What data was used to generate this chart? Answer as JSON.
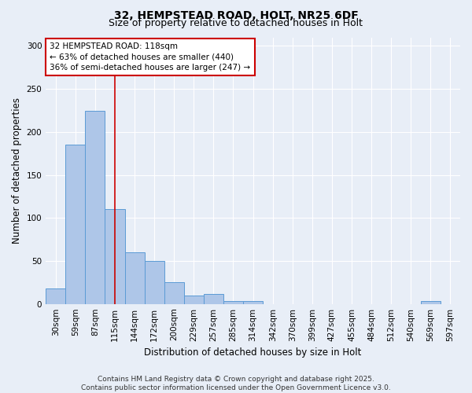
{
  "title_line1": "32, HEMPSTEAD ROAD, HOLT, NR25 6DF",
  "title_line2": "Size of property relative to detached houses in Holt",
  "xlabel": "Distribution of detached houses by size in Holt",
  "ylabel": "Number of detached properties",
  "bin_labels": [
    "30sqm",
    "59sqm",
    "87sqm",
    "115sqm",
    "144sqm",
    "172sqm",
    "200sqm",
    "229sqm",
    "257sqm",
    "285sqm",
    "314sqm",
    "342sqm",
    "370sqm",
    "399sqm",
    "427sqm",
    "455sqm",
    "484sqm",
    "512sqm",
    "540sqm",
    "569sqm",
    "597sqm"
  ],
  "bar_heights": [
    18,
    185,
    225,
    110,
    60,
    50,
    25,
    10,
    12,
    3,
    3,
    0,
    0,
    0,
    0,
    0,
    0,
    0,
    0,
    3,
    0
  ],
  "bar_color": "#aec6e8",
  "bar_edge_color": "#5b9bd5",
  "red_line_index": 3,
  "annotation_line1": "32 HEMPSTEAD ROAD: 118sqm",
  "annotation_line2": "← 63% of detached houses are smaller (440)",
  "annotation_line3": "36% of semi-detached houses are larger (247) →",
  "annotation_box_color": "#ffffff",
  "annotation_box_edge_color": "#cc0000",
  "red_line_color": "#cc0000",
  "ylim": [
    0,
    310
  ],
  "yticks": [
    0,
    50,
    100,
    150,
    200,
    250,
    300
  ],
  "footer_line1": "Contains HM Land Registry data © Crown copyright and database right 2025.",
  "footer_line2": "Contains public sector information licensed under the Open Government Licence v3.0.",
  "fig_bg_color": "#e8eef7",
  "plot_bg_color": "#e8eef7",
  "title_fontsize": 10,
  "subtitle_fontsize": 9,
  "axis_label_fontsize": 8.5,
  "tick_fontsize": 7.5,
  "annotation_fontsize": 7.5,
  "footer_fontsize": 6.5
}
